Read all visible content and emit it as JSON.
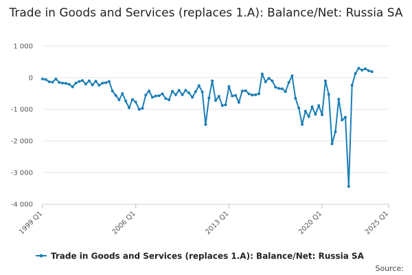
{
  "chart_data": {
    "type": "line",
    "title": "Trade in Goods and Services (replaces 1.A): Balance/Net: Russia SA",
    "xlabel": "",
    "ylabel": "",
    "ylim": [
      -4000,
      1000
    ],
    "yticks": [
      1000,
      0,
      -1000,
      -2000,
      -3000,
      -4000
    ],
    "ytick_labels": [
      "1 000",
      "0",
      "-1 000",
      "-2 000",
      "-3 000",
      "-4 000"
    ],
    "x_start": "1999 Q1",
    "xticks": [
      {
        "index": 0,
        "label": "1999 Q1"
      },
      {
        "index": 28,
        "label": "2006 Q1"
      },
      {
        "index": 56,
        "label": "2013 Q1"
      },
      {
        "index": 84,
        "label": "2020 Q1"
      },
      {
        "index": 104,
        "label": "2025 Q1"
      }
    ],
    "grid": true,
    "series": [
      {
        "name": "Trade in Goods and Services (replaces 1.A): Balance/Net: Russia SA",
        "color": "#1a7db6",
        "values": [
          -40,
          -60,
          -130,
          -140,
          -40,
          -150,
          -170,
          -180,
          -210,
          -290,
          -170,
          -120,
          -90,
          -200,
          -100,
          -230,
          -110,
          -240,
          -170,
          -160,
          -120,
          -420,
          -560,
          -700,
          -500,
          -740,
          -950,
          -690,
          -770,
          -1000,
          -970,
          -550,
          -420,
          -620,
          -580,
          -570,
          -510,
          -660,
          -700,
          -430,
          -540,
          -400,
          -540,
          -400,
          -480,
          -620,
          -440,
          -250,
          -450,
          -1480,
          -640,
          -100,
          -720,
          -590,
          -880,
          -860,
          -280,
          -580,
          -560,
          -780,
          -420,
          -410,
          -510,
          -550,
          -540,
          -510,
          120,
          -130,
          -20,
          -100,
          -300,
          -340,
          -350,
          -440,
          -150,
          60,
          -650,
          -960,
          -1480,
          -1060,
          -1230,
          -920,
          -1160,
          -880,
          -1170,
          -100,
          -530,
          -2090,
          -1710,
          -680,
          -1340,
          -1250,
          -3440,
          -240,
          130,
          300,
          240,
          280,
          220,
          190
        ]
      }
    ],
    "legend_position": "bottom",
    "source_label": "Source:"
  }
}
